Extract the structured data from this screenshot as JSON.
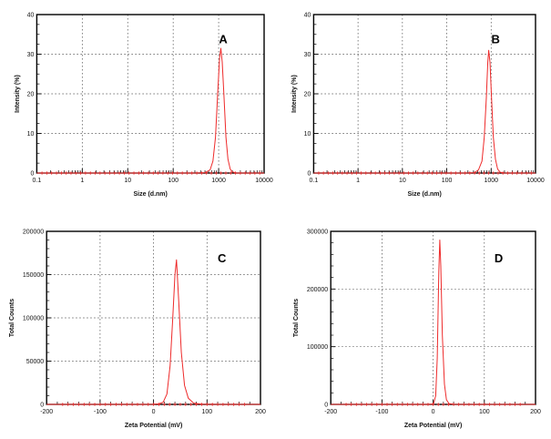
{
  "style": {
    "background": "#ffffff",
    "grid_color": "#4d4d4d",
    "frame_color": "#000000",
    "text_color": "#111111"
  },
  "chart_data": [
    {
      "panel_label": "A",
      "type": "line",
      "xlabel": "Size (d.nm)",
      "ylabel": "Intensity (%)",
      "xscale": "log",
      "xlim": [
        0.1,
        10000
      ],
      "ylim": [
        0,
        40
      ],
      "xticks": [
        0.1,
        1,
        10,
        100,
        1000,
        10000
      ],
      "xtick_labels": [
        "0.1",
        "1",
        "10",
        "100",
        "1000",
        "10000"
      ],
      "yticks": [
        0,
        10,
        20,
        30,
        40
      ],
      "ytick_labels": [
        "0",
        "10",
        "20",
        "30",
        "40"
      ],
      "y_minor_step": 2.5,
      "line_color": "#ee2a2a",
      "grid": true,
      "legend": "none",
      "peak": {
        "x": 1120,
        "y": 31.5
      },
      "series": [
        {
          "name": "size-distribution",
          "points": [
            [
              0.1,
              0
            ],
            [
              300,
              0
            ],
            [
              500,
              0.1
            ],
            [
              650,
              0.8
            ],
            [
              750,
              3
            ],
            [
              850,
              9
            ],
            [
              950,
              20
            ],
            [
              1050,
              29
            ],
            [
              1120,
              31.5
            ],
            [
              1200,
              28
            ],
            [
              1300,
              20
            ],
            [
              1450,
              9
            ],
            [
              1600,
              3.5
            ],
            [
              1800,
              1
            ],
            [
              2000,
              0.3
            ],
            [
              2500,
              0
            ],
            [
              10000,
              0
            ]
          ]
        }
      ],
      "baseline_markers": {
        "from": 0.13,
        "to": 8000,
        "count": 46
      }
    },
    {
      "panel_label": "B",
      "type": "line",
      "xlabel": "Size (d.nm)",
      "ylabel": "Intensity (%)",
      "xscale": "log",
      "xlim": [
        0.1,
        10000
      ],
      "ylim": [
        0,
        40
      ],
      "xticks": [
        0.1,
        1,
        10,
        100,
        1000,
        10000
      ],
      "xtick_labels": [
        "0.1",
        "1",
        "10",
        "100",
        "1000",
        "10000"
      ],
      "yticks": [
        0,
        10,
        20,
        30,
        40
      ],
      "ytick_labels": [
        "0",
        "10",
        "20",
        "30",
        "40"
      ],
      "y_minor_step": 2.5,
      "line_color": "#ee2a2a",
      "grid": true,
      "legend": "none",
      "peak": {
        "x": 880,
        "y": 31
      },
      "series": [
        {
          "name": "size-distribution",
          "points": [
            [
              0.1,
              0
            ],
            [
              250,
              0
            ],
            [
              420,
              0.1
            ],
            [
              520,
              0.8
            ],
            [
              620,
              3
            ],
            [
              700,
              9
            ],
            [
              780,
              19
            ],
            [
              840,
              28
            ],
            [
              880,
              31
            ],
            [
              940,
              28
            ],
            [
              1020,
              19
            ],
            [
              1120,
              9
            ],
            [
              1250,
              3.5
            ],
            [
              1400,
              1
            ],
            [
              1600,
              0.2
            ],
            [
              2000,
              0
            ],
            [
              10000,
              0
            ]
          ]
        }
      ],
      "baseline_markers": {
        "from": 0.13,
        "to": 8000,
        "count": 46
      }
    },
    {
      "panel_label": "C",
      "type": "line",
      "xlabel": "Zeta Potential (mV)",
      "ylabel": "Total Counts",
      "xscale": "linear",
      "xlim": [
        -200,
        200
      ],
      "ylim": [
        0,
        200000
      ],
      "xticks": [
        -200,
        -100,
        0,
        100,
        200
      ],
      "xtick_labels": [
        "-200",
        "-100",
        "0",
        "100",
        "200"
      ],
      "yticks": [
        0,
        50000,
        100000,
        150000,
        200000
      ],
      "ytick_labels": [
        "0",
        "50000",
        "100000",
        "150000",
        "200000"
      ],
      "x_minor_step": 20,
      "y_minor_step": 10000,
      "line_color": "#ee2a2a",
      "grid": true,
      "legend": "none",
      "peak": {
        "x": 43,
        "y": 167000
      },
      "series": [
        {
          "name": "zeta-distribution",
          "points": [
            [
              -200,
              0
            ],
            [
              -60,
              0
            ],
            [
              -20,
              0
            ],
            [
              0,
              100
            ],
            [
              10,
              600
            ],
            [
              18,
              2500
            ],
            [
              25,
              12000
            ],
            [
              31,
              45000
            ],
            [
              36,
              100000
            ],
            [
              40,
              150000
            ],
            [
              43,
              167000
            ],
            [
              47,
              120000
            ],
            [
              52,
              60000
            ],
            [
              58,
              22000
            ],
            [
              65,
              7000
            ],
            [
              75,
              1500
            ],
            [
              90,
              200
            ],
            [
              120,
              0
            ],
            [
              200,
              0
            ]
          ]
        }
      ],
      "baseline_markers": {
        "from": -170,
        "to": 170,
        "count": 35
      }
    },
    {
      "panel_label": "D",
      "type": "line",
      "xlabel": "Zeta Potential (mV)",
      "ylabel": "Total Counts",
      "xscale": "linear",
      "xlim": [
        -200,
        200
      ],
      "ylim": [
        0,
        300000
      ],
      "xticks": [
        -200,
        -100,
        0,
        100,
        200
      ],
      "xtick_labels": [
        "-200",
        "-100",
        "0",
        "100",
        "200"
      ],
      "yticks": [
        0,
        100000,
        200000,
        300000
      ],
      "ytick_labels": [
        "0",
        "100000",
        "200000",
        "300000"
      ],
      "x_minor_step": 20,
      "y_minor_step": 20000,
      "line_color": "#ee2a2a",
      "grid": true,
      "legend": "none",
      "peak": {
        "x": 13,
        "y": 285000
      },
      "series": [
        {
          "name": "zeta-distribution",
          "points": [
            [
              -200,
              0
            ],
            [
              -40,
              0
            ],
            [
              -10,
              0
            ],
            [
              -3,
              300
            ],
            [
              1,
              2000
            ],
            [
              5,
              15000
            ],
            [
              8,
              80000
            ],
            [
              11,
              230000
            ],
            [
              13,
              285000
            ],
            [
              15,
              240000
            ],
            [
              18,
              120000
            ],
            [
              22,
              35000
            ],
            [
              26,
              8000
            ],
            [
              31,
              1500
            ],
            [
              40,
              200
            ],
            [
              60,
              0
            ],
            [
              200,
              0
            ]
          ]
        }
      ],
      "baseline_markers": {
        "from": -170,
        "to": 170,
        "count": 35
      }
    }
  ]
}
